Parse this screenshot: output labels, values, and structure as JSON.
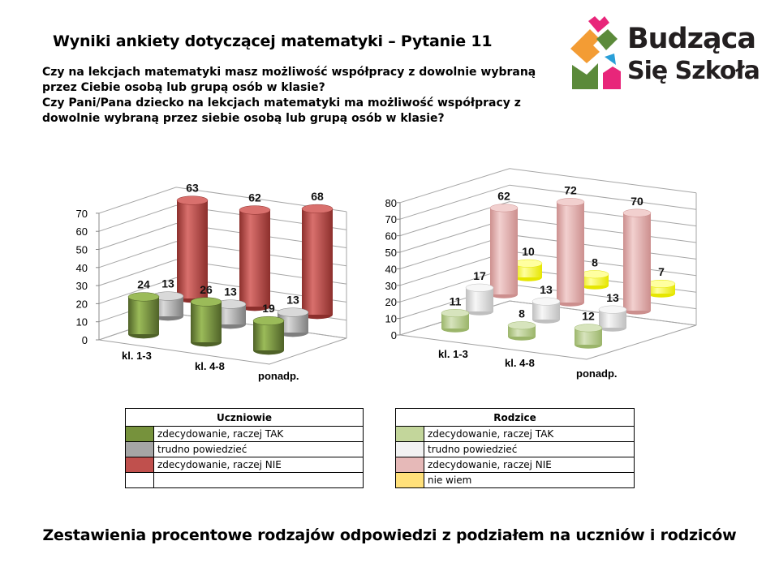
{
  "title": "Wyniki ankiety dotyczącej matematyki – Pytanie 11",
  "question": {
    "line1": "Czy na lekcjach matematyki masz możliwość współpracy z dowolnie wybraną przez Ciebie osobą lub grupą osób w klasie?",
    "line2": "Czy Pani/Pana dziecko na lekcjach matematyki ma możliwość współpracy z dowolnie wybraną przez siebie osobą lub grupą osób w klasie?"
  },
  "logo": {
    "line1": "Budząca",
    "line2": "Się Szkoła"
  },
  "caption": "Zestawienia procentowe rodzajów odpowiedzi z podziałem na uczniów i rodziców",
  "chart_data": [
    {
      "type": "bar",
      "title": "Uczniowie",
      "categories": [
        "kl. 1-3",
        "kl. 4-8",
        "ponadp."
      ],
      "yticks": [
        "0",
        "10",
        "20",
        "30",
        "40",
        "50",
        "60",
        "70"
      ],
      "ylim": [
        0,
        70
      ],
      "series": [
        {
          "name": "zdecydowanie, raczej TAK",
          "color": "#77933c",
          "light": "#9bbb59",
          "dark": "#4f6228",
          "values": [
            24,
            26,
            19
          ]
        },
        {
          "name": "trudno powiedzieć",
          "color": "#a6a6a6",
          "light": "#d9d9d9",
          "dark": "#7f7f7f",
          "values": [
            13,
            13,
            13
          ]
        },
        {
          "name": "zdecydowanie, raczej NIE",
          "color": "#c0504d",
          "light": "#d9706d",
          "dark": "#8c2f2c",
          "values": [
            63,
            62,
            68
          ]
        }
      ],
      "legend_placement": "bottom"
    },
    {
      "type": "bar",
      "title": "Rodzice",
      "categories": [
        "kl. 1-3",
        "kl. 4-8",
        "ponadp."
      ],
      "yticks": [
        "0",
        "10",
        "20",
        "30",
        "40",
        "50",
        "60",
        "70",
        "80"
      ],
      "ylim": [
        0,
        80
      ],
      "series": [
        {
          "name": "zdecydowanie, raczej TAK",
          "color": "#c3d69b",
          "light": "#d7e4bd",
          "dark": "#9bb56a",
          "values": [
            11,
            8,
            12
          ]
        },
        {
          "name": "trudno powiedzieć",
          "color": "#e6e6e6",
          "light": "#f7f7f7",
          "dark": "#bfbfbf",
          "values": [
            17,
            13,
            13
          ]
        },
        {
          "name": "zdecydowanie, raczej NIE",
          "color": "#e6b9b8",
          "light": "#f2d0cf",
          "dark": "#cc8f8e",
          "values": [
            62,
            72,
            70
          ]
        },
        {
          "name": "nie wiem",
          "color": "#ffff66",
          "light": "#ffffa0",
          "dark": "#e6e600",
          "values": [
            10,
            8,
            7
          ]
        }
      ],
      "legend_placement": "bottom"
    }
  ],
  "legends": [
    {
      "title": "Uczniowie",
      "items": [
        {
          "label": "zdecydowanie, raczej TAK",
          "color": "#76923c"
        },
        {
          "label": "trudno powiedzieć",
          "color": "#a5a5a5"
        },
        {
          "label": "zdecydowanie, raczej NIE",
          "color": "#c0504d"
        }
      ]
    },
    {
      "title": "Rodzice",
      "items": [
        {
          "label": "zdecydowanie, raczej TAK",
          "color": "#c3d69b"
        },
        {
          "label": "trudno powiedzieć",
          "color": "#f2f2f2"
        },
        {
          "label": "zdecydowanie, raczej NIE",
          "color": "#e6b9b8"
        },
        {
          "label": "nie wiem",
          "color": "#ffe07a"
        }
      ]
    }
  ]
}
